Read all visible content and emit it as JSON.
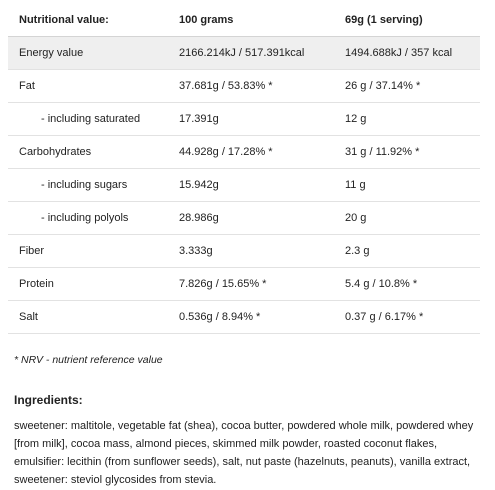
{
  "table": {
    "headers": [
      "Nutritional value:",
      "100 grams",
      "69g (1 serving)"
    ],
    "rows": [
      {
        "label": "Energy value",
        "per100": "2166.214kJ / 517.391kcal",
        "serving": "1494.688kJ / 357 kcal"
      },
      {
        "label": "Fat",
        "per100": "37.681g / 53.83% *",
        "serving": "26 g / 37.14% *"
      },
      {
        "label": "- including saturated",
        "per100": "17.391g",
        "serving": "12 g"
      },
      {
        "label": "Carbohydrates",
        "per100": "44.928g / 17.28% *",
        "serving": "31 g / 11.92% *"
      },
      {
        "label": "- including sugars",
        "per100": "15.942g",
        "serving": "11 g"
      },
      {
        "label": "- including polyols",
        "per100": "28.986g",
        "serving": "20 g"
      },
      {
        "label": "Fiber",
        "per100": "3.333g",
        "serving": "2.3 g"
      },
      {
        "label": "Protein",
        "per100": "7.826g / 15.65% *",
        "serving": "5.4 g / 10.8% *"
      },
      {
        "label": "Salt",
        "per100": "0.536g / 8.94% *",
        "serving": "0.37 g / 6.17% *"
      }
    ]
  },
  "note": "* NRV - nutrient reference value",
  "ingredients": {
    "heading": "Ingredients:",
    "text": "sweetener: maltitole, vegetable fat (shea), cocoa butter, powdered whole milk, powdered whey [from milk], cocoa mass, almond pieces, skimmed milk powder, roasted coconut flakes, emulsifier: lecithin (from sunflower seeds), salt, nut paste (hazelnuts, peanuts), vanilla extract, sweetener: steviol glycosides from stevia."
  }
}
